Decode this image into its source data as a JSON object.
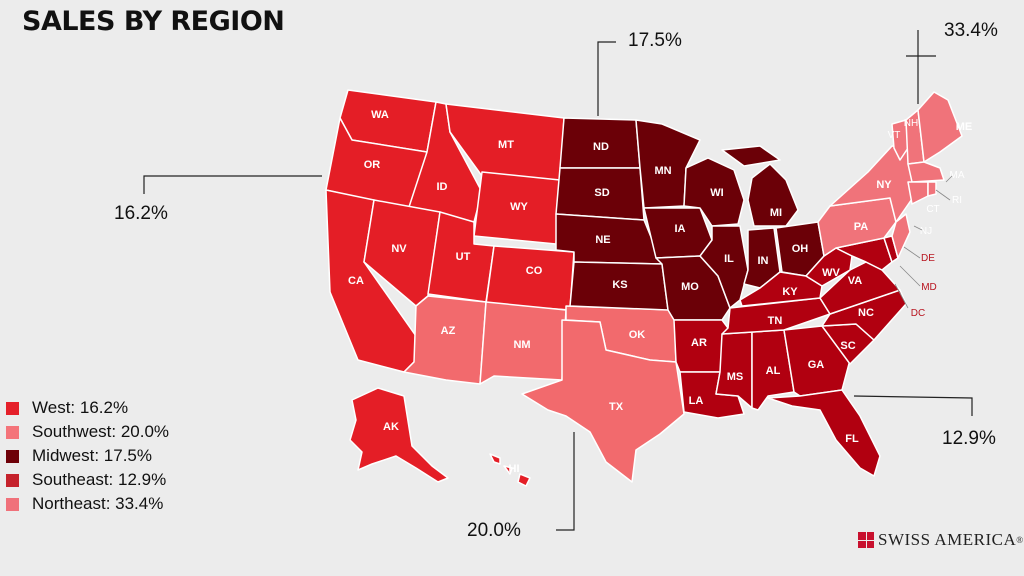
{
  "title": "SALES BY REGION",
  "colors": {
    "west": "#e41e26",
    "southwest": "#f26a6d",
    "midwest": "#6b0007",
    "southeast": "#b10010",
    "northeast": "#f0737a",
    "background": "#ececec"
  },
  "legend": [
    {
      "label": "West: 16.2%",
      "color": "#e5202a"
    },
    {
      "label": "Southwest: 20.0%",
      "color": "#f4747a"
    },
    {
      "label": "Midwest: 17.5%",
      "color": "#6e0008"
    },
    {
      "label": "Southeast: 12.9%",
      "color": "#c5222c"
    },
    {
      "label": "Northeast: 33.4%",
      "color": "#f0717a"
    }
  ],
  "callouts": {
    "west": "16.2%",
    "southwest": "20.0%",
    "midwest": "17.5%",
    "southeast": "12.9%",
    "northeast": "33.4%"
  },
  "regions": {
    "west": [
      "WA",
      "OR",
      "CA",
      "ID",
      "NV",
      "MT",
      "WY",
      "UT",
      "CO",
      "AK",
      "HI"
    ],
    "southwest": [
      "AZ",
      "NM",
      "TX",
      "OK"
    ],
    "midwest": [
      "ND",
      "SD",
      "NE",
      "KS",
      "MN",
      "IA",
      "MO",
      "WI",
      "IL",
      "MI",
      "IN",
      "OH"
    ],
    "southeast": [
      "AR",
      "LA",
      "MS",
      "AL",
      "TN",
      "KY",
      "GA",
      "FL",
      "SC",
      "NC",
      "VA",
      "WV",
      "DE",
      "MD",
      "DC"
    ],
    "northeast": [
      "ME",
      "NH",
      "VT",
      "NY",
      "MA",
      "RI",
      "CT",
      "PA",
      "NJ"
    ]
  },
  "logo": {
    "text": "SWISS AMERICA",
    "trademark": "®"
  }
}
